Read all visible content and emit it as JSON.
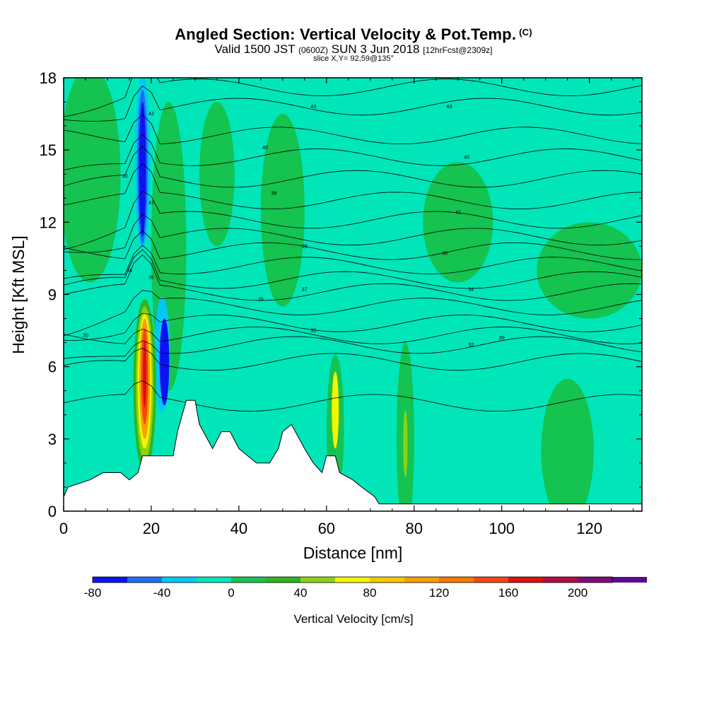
{
  "header": {
    "title": "Angled Section: Vertical Velocity & Pot.Temp.",
    "title_suffix": "(C)",
    "subtitle_main": "Valid 1500 JST",
    "subtitle_z": "(0600Z)",
    "subtitle_date": "SUN 3 Jun 2018",
    "subtitle_fcst": "[12hrFcst@2309z]",
    "slice": "slice X,Y= 92,59@135°"
  },
  "chart_data": {
    "type": "heatmap",
    "xlabel": "Distance [nm]",
    "ylabel": "Height [Kft MSL]",
    "xlim": [
      0,
      132
    ],
    "ylim": [
      0,
      18
    ],
    "x_ticks": [
      "0",
      "20",
      "40",
      "60",
      "80",
      "100",
      "120"
    ],
    "x_tick_values": [
      0,
      20,
      40,
      60,
      80,
      100,
      120
    ],
    "y_ticks": [
      "0",
      "3",
      "6",
      "9",
      "12",
      "15",
      "18"
    ],
    "y_tick_values": [
      0,
      3,
      6,
      9,
      12,
      15,
      18
    ],
    "colorbar": {
      "title": "Vertical Velocity [cm/s]",
      "labels": [
        "-80",
        "-40",
        "0",
        "40",
        "80",
        "120",
        "160",
        "200"
      ],
      "label_values": [
        -80,
        -40,
        0,
        40,
        80,
        120,
        160,
        200
      ],
      "range": [
        -80,
        220
      ],
      "bin_width": 20,
      "colors": [
        "#0a14f0",
        "#1e6ef5",
        "#00c8f5",
        "#00e6b9",
        "#14c350",
        "#32b41e",
        "#8cd214",
        "#f5f500",
        "#f5c800",
        "#f5a000",
        "#f57800",
        "#f54614",
        "#dc0f14",
        "#b40a46",
        "#820a78",
        "#5a0a8c"
      ]
    },
    "terrain_kft": [
      [
        0,
        0.6
      ],
      [
        1,
        1.0
      ],
      [
        6,
        1.3
      ],
      [
        9,
        1.6
      ],
      [
        13,
        1.6
      ],
      [
        15,
        1.3
      ],
      [
        17,
        1.6
      ],
      [
        18,
        2.3
      ],
      [
        25,
        2.3
      ],
      [
        26,
        3.3
      ],
      [
        28,
        4.6
      ],
      [
        30,
        4.6
      ],
      [
        31,
        3.6
      ],
      [
        34,
        2.6
      ],
      [
        36,
        3.3
      ],
      [
        38,
        3.3
      ],
      [
        40,
        2.6
      ],
      [
        42,
        2.3
      ],
      [
        44,
        2.0
      ],
      [
        47,
        2.0
      ],
      [
        49,
        2.6
      ],
      [
        50,
        3.3
      ],
      [
        52,
        3.6
      ],
      [
        55,
        2.6
      ],
      [
        57,
        2.0
      ],
      [
        59,
        1.6
      ],
      [
        60,
        2.3
      ],
      [
        62,
        2.3
      ],
      [
        63,
        1.6
      ],
      [
        66,
        1.3
      ],
      [
        68,
        1.0
      ],
      [
        71,
        0.6
      ],
      [
        72,
        0.3
      ],
      [
        132,
        0.3
      ]
    ],
    "theta_contour_labels": [
      "30",
      "30",
      "32",
      "32",
      "34",
      "34",
      "35",
      "36",
      "36",
      "37",
      "38",
      "38",
      "40",
      "40",
      "40",
      "42",
      "42",
      "42",
      "43",
      "43"
    ],
    "theta_label_positions": [
      [
        5,
        7.3
      ],
      [
        100,
        7.2
      ],
      [
        57,
        7.5
      ],
      [
        93,
        6.9
      ],
      [
        15,
        10.0
      ],
      [
        93,
        9.2
      ],
      [
        45,
        8.8
      ],
      [
        87,
        10.7
      ],
      [
        20,
        9.7
      ],
      [
        55,
        9.2
      ],
      [
        55,
        11.0
      ],
      [
        48,
        13.2
      ],
      [
        14,
        13.9
      ],
      [
        46,
        15.1
      ],
      [
        92,
        14.7
      ],
      [
        20,
        16.5
      ],
      [
        20,
        12.8
      ],
      [
        90,
        12.4
      ],
      [
        57,
        16.8
      ],
      [
        88,
        16.8
      ]
    ],
    "series": []
  }
}
